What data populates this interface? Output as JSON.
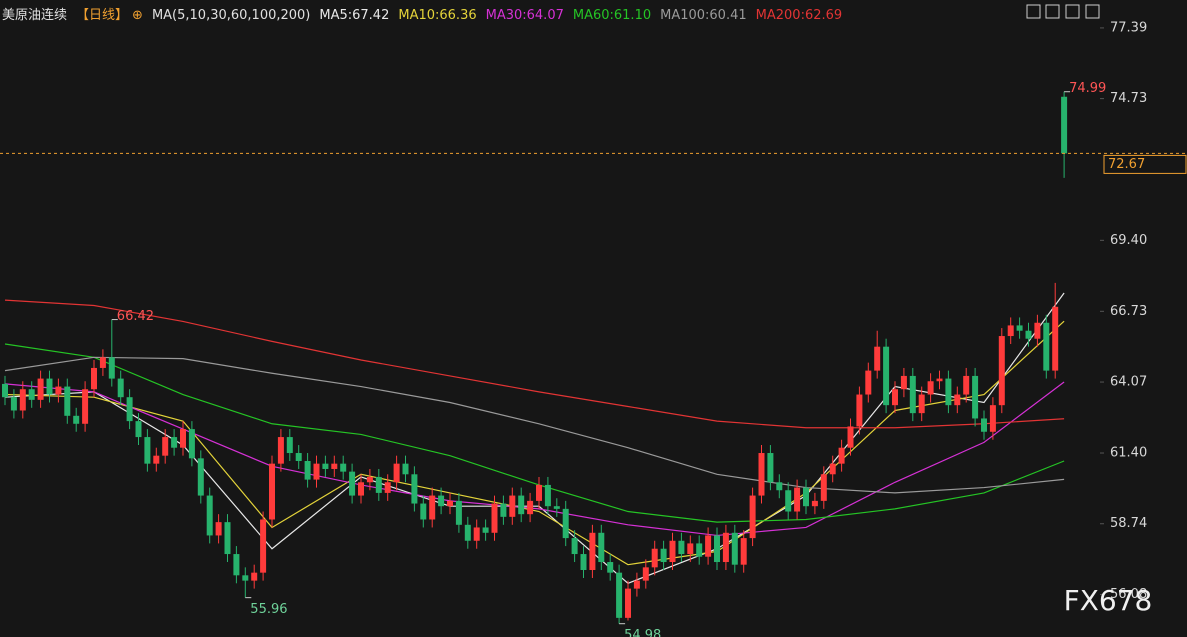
{
  "chart_data": {
    "type": "candlestick",
    "title": "美原油连续",
    "period": "【日线】",
    "indicator": "MA(5,10,30,60,100,200)",
    "watermark": "FX678",
    "up_color": "#ff3b3b",
    "down_color": "#27b36d",
    "ylim": [
      54.48,
      78.44
    ],
    "yticks": [
      77.39,
      74.73,
      {
        "value": 69.4,
        "label": "69.40"
      },
      66.73,
      64.07,
      {
        "value": 61.4,
        "label": "61.40"
      },
      58.74,
      56.08
    ],
    "last_price": 72.67,
    "open": [
      64.0,
      63.5,
      63.0,
      63.8,
      63.4,
      64.2,
      63.6,
      63.9,
      62.8,
      62.5,
      63.8,
      64.6,
      65.0,
      64.2,
      63.5,
      62.6,
      62.0,
      61.0,
      61.3,
      62.0,
      61.6,
      62.3,
      61.2,
      59.8,
      58.3,
      58.8,
      57.6,
      56.8,
      56.6,
      56.9,
      58.9,
      61.0,
      62.0,
      61.4,
      61.1,
      60.4,
      61.0,
      60.8,
      61.0,
      60.7,
      59.8,
      60.3,
      60.5,
      59.9,
      60.3,
      61.0,
      60.6,
      59.5,
      58.9,
      59.8,
      59.4,
      59.6,
      58.7,
      58.1,
      58.6,
      58.4,
      59.5,
      59.0,
      59.8,
      59.1,
      59.6,
      60.2,
      59.4,
      59.3,
      58.2,
      57.6,
      57.0,
      58.4,
      57.3,
      56.9,
      55.2,
      56.3,
      56.6,
      57.1,
      57.8,
      57.3,
      58.1,
      57.6,
      58.0,
      57.5,
      58.3,
      57.3,
      58.4,
      57.2,
      58.2,
      59.8,
      61.4,
      60.3,
      60.0,
      59.2,
      60.1,
      59.4,
      59.6,
      60.6,
      61.0,
      61.6,
      62.4,
      63.6,
      64.5,
      65.4,
      63.2,
      63.8,
      64.3,
      62.9,
      63.6,
      64.1,
      64.2,
      63.2,
      63.6,
      64.3,
      62.7,
      62.2,
      63.2,
      65.8,
      66.2,
      66.0,
      65.7,
      66.3,
      64.5,
      74.8
    ],
    "high": [
      64.3,
      63.8,
      64.1,
      64.1,
      64.5,
      64.5,
      64.2,
      64.2,
      63.1,
      64.1,
      64.9,
      65.3,
      66.42,
      64.5,
      63.8,
      62.9,
      62.3,
      61.6,
      62.3,
      62.3,
      62.6,
      62.6,
      61.5,
      60.1,
      59.1,
      59.1,
      57.9,
      57.1,
      57.2,
      59.2,
      61.3,
      62.3,
      62.3,
      61.7,
      61.4,
      61.3,
      61.3,
      61.3,
      61.3,
      61.0,
      60.6,
      60.8,
      60.8,
      60.6,
      61.3,
      61.3,
      60.9,
      59.8,
      60.1,
      60.1,
      59.9,
      59.9,
      59.0,
      58.9,
      58.9,
      59.8,
      59.8,
      60.1,
      60.1,
      59.9,
      60.5,
      60.5,
      59.7,
      59.6,
      58.5,
      57.9,
      58.7,
      58.7,
      57.6,
      57.2,
      56.6,
      56.9,
      57.4,
      58.1,
      58.1,
      58.4,
      58.4,
      58.3,
      58.3,
      58.6,
      58.6,
      58.7,
      58.7,
      58.5,
      60.1,
      61.7,
      61.7,
      60.6,
      60.3,
      60.4,
      60.4,
      59.9,
      60.9,
      61.3,
      61.9,
      62.7,
      63.9,
      64.8,
      66.0,
      65.7,
      64.1,
      64.6,
      64.6,
      63.9,
      64.4,
      64.5,
      64.5,
      63.9,
      64.6,
      64.6,
      63.0,
      63.5,
      66.1,
      66.5,
      66.5,
      66.3,
      66.6,
      66.6,
      67.8,
      74.99
    ],
    "low": [
      63.2,
      62.7,
      62.7,
      63.1,
      63.1,
      63.3,
      63.3,
      62.5,
      62.2,
      62.2,
      63.5,
      64.3,
      63.9,
      63.2,
      62.3,
      61.7,
      60.7,
      60.7,
      61.0,
      61.3,
      61.3,
      60.9,
      59.5,
      58.0,
      58.0,
      57.3,
      56.5,
      55.96,
      56.3,
      56.6,
      58.6,
      60.7,
      61.1,
      60.8,
      60.1,
      60.1,
      60.5,
      60.5,
      60.4,
      59.5,
      59.5,
      60.0,
      59.6,
      59.6,
      60.0,
      60.3,
      59.2,
      58.6,
      58.6,
      59.1,
      59.1,
      58.4,
      57.8,
      57.8,
      58.1,
      58.1,
      58.7,
      58.7,
      58.8,
      58.8,
      59.3,
      59.1,
      59.0,
      57.9,
      57.3,
      56.7,
      56.7,
      57.0,
      56.6,
      54.98,
      55.1,
      56.0,
      56.3,
      56.8,
      57.0,
      57.0,
      57.3,
      57.3,
      57.2,
      57.2,
      57.0,
      57.0,
      56.9,
      56.9,
      57.9,
      59.5,
      60.0,
      59.7,
      58.9,
      58.9,
      59.1,
      59.1,
      59.3,
      60.3,
      60.7,
      61.3,
      62.1,
      63.3,
      64.2,
      62.9,
      62.9,
      63.5,
      62.6,
      62.6,
      63.3,
      63.8,
      62.9,
      62.9,
      63.3,
      62.4,
      61.9,
      61.9,
      62.9,
      65.5,
      65.7,
      65.4,
      65.4,
      64.2,
      64.2,
      71.75
    ],
    "close": [
      63.5,
      63.0,
      63.8,
      63.4,
      64.2,
      63.6,
      63.9,
      62.8,
      62.5,
      63.8,
      64.6,
      65.0,
      64.2,
      63.5,
      62.6,
      62.0,
      61.0,
      61.3,
      62.0,
      61.6,
      62.3,
      61.2,
      59.8,
      58.3,
      58.8,
      57.6,
      56.8,
      56.6,
      56.9,
      58.9,
      61.0,
      62.0,
      61.4,
      61.1,
      60.4,
      61.0,
      60.8,
      61.0,
      60.7,
      59.8,
      60.3,
      60.5,
      59.9,
      60.3,
      61.0,
      60.6,
      59.5,
      58.9,
      59.8,
      59.4,
      59.6,
      58.7,
      58.1,
      58.6,
      58.4,
      59.5,
      59.0,
      59.8,
      59.1,
      59.6,
      60.2,
      59.4,
      59.3,
      58.2,
      57.6,
      57.0,
      58.4,
      57.3,
      56.9,
      55.2,
      56.3,
      56.6,
      57.1,
      57.8,
      57.3,
      58.1,
      57.6,
      58.0,
      57.5,
      58.3,
      57.3,
      58.4,
      57.2,
      58.2,
      59.8,
      61.4,
      60.3,
      60.0,
      59.2,
      60.1,
      59.4,
      59.6,
      60.6,
      61.0,
      61.6,
      62.4,
      63.6,
      64.5,
      65.4,
      63.2,
      63.8,
      64.3,
      62.9,
      63.6,
      64.1,
      64.2,
      63.2,
      63.6,
      64.3,
      62.7,
      62.2,
      63.2,
      65.8,
      66.2,
      66.0,
      65.7,
      66.3,
      64.5,
      66.9,
      72.67
    ],
    "ma": {
      "x": [
        0,
        10,
        20,
        30,
        40,
        50,
        60,
        70,
        80,
        90,
        100,
        110,
        119
      ],
      "series": [
        {
          "name": "MA5:67.42",
          "color": "#e8e8e8",
          "values": [
            63.5,
            63.7,
            61.7,
            57.8,
            60.5,
            59.4,
            59.4,
            56.5,
            57.8,
            59.8,
            63.9,
            63.3,
            67.42
          ]
        },
        {
          "name": "MA10:66.36",
          "color": "#e3d33a",
          "values": [
            63.6,
            63.5,
            62.6,
            58.6,
            60.6,
            59.9,
            59.2,
            57.2,
            57.7,
            59.9,
            63.0,
            63.6,
            66.36
          ]
        },
        {
          "name": "MA30:64.07",
          "color": "#d531d5",
          "values": [
            64.0,
            63.7,
            62.3,
            60.9,
            60.2,
            59.6,
            59.3,
            58.7,
            58.3,
            58.6,
            60.3,
            61.8,
            64.07
          ]
        },
        {
          "name": "MA60:61.10",
          "color": "#25c425",
          "values": [
            65.5,
            65.0,
            63.6,
            62.5,
            62.1,
            61.3,
            60.2,
            59.2,
            58.8,
            58.9,
            59.3,
            59.9,
            61.1
          ]
        },
        {
          "name": "MA100:60.41",
          "color": "#9a9a9a",
          "values": [
            64.5,
            65.0,
            64.95,
            64.4,
            63.9,
            63.3,
            62.5,
            61.6,
            60.6,
            60.1,
            59.9,
            60.1,
            60.41
          ]
        },
        {
          "name": "MA200:62.69",
          "color": "#e23434",
          "values": [
            67.15,
            66.95,
            66.35,
            65.6,
            64.9,
            64.3,
            63.7,
            63.15,
            62.6,
            62.35,
            62.35,
            62.5,
            62.69
          ]
        }
      ]
    }
  }
}
